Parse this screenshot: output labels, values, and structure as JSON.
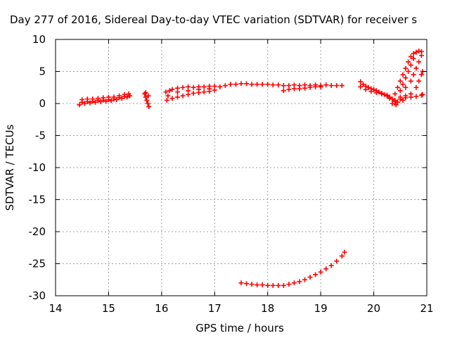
{
  "chart_data": {
    "type": "scatter",
    "title": "Day 277 of 2016, Sidereal Day-to-day VTEC variation (SDTVAR) for receiver s",
    "xlabel": "GPS time / hours",
    "ylabel": "SDTVAR / TECUs",
    "xlim": [
      14,
      21
    ],
    "ylim": [
      -30,
      10
    ],
    "x_ticks": [
      14,
      15,
      16,
      17,
      18,
      19,
      20,
      21
    ],
    "y_ticks": [
      10,
      5,
      0,
      -5,
      -10,
      -15,
      -20,
      -25,
      -30
    ],
    "x_tick_labels": [
      "14",
      "15",
      "16",
      "17",
      "18",
      "19",
      "20",
      "21"
    ],
    "y_tick_labels": [
      "10",
      "5",
      "0",
      "-5",
      "-10",
      "-15",
      "-20",
      "-25",
      "-30"
    ],
    "grid": true,
    "marker": "plus",
    "color": "#ff0000",
    "series": [
      {
        "points": [
          [
            14.45,
            -0.2
          ],
          [
            14.55,
            0.0
          ],
          [
            14.65,
            0.1
          ],
          [
            14.75,
            0.2
          ],
          [
            14.85,
            0.3
          ],
          [
            14.95,
            0.35
          ],
          [
            15.05,
            0.45
          ],
          [
            15.15,
            0.6
          ],
          [
            15.25,
            0.8
          ],
          [
            15.35,
            1.0
          ],
          [
            15.4,
            1.2
          ],
          [
            14.5,
            0.6
          ],
          [
            14.6,
            0.7
          ],
          [
            14.7,
            0.7
          ],
          [
            14.8,
            0.8
          ],
          [
            14.9,
            0.9
          ],
          [
            15.0,
            1.0
          ],
          [
            15.1,
            1.0
          ],
          [
            15.2,
            1.2
          ],
          [
            15.3,
            1.4
          ],
          [
            15.38,
            1.5
          ],
          [
            14.5,
            0.2
          ],
          [
            14.6,
            0.3
          ],
          [
            14.7,
            0.35
          ],
          [
            14.8,
            0.5
          ],
          [
            14.9,
            0.55
          ],
          [
            15.0,
            0.6
          ],
          [
            15.1,
            0.7
          ],
          [
            15.2,
            0.9
          ],
          [
            15.3,
            1.1
          ],
          [
            15.68,
            1.5
          ],
          [
            15.7,
            1.0
          ],
          [
            15.72,
            0.5
          ],
          [
            15.74,
            0.0
          ],
          [
            15.76,
            -0.5
          ],
          [
            15.7,
            1.7
          ],
          [
            15.75,
            1.2
          ],
          [
            16.08,
            1.8
          ],
          [
            16.1,
            0.5
          ],
          [
            16.12,
            1.2
          ],
          [
            16.15,
            2.0
          ],
          [
            16.2,
            2.2
          ],
          [
            16.3,
            2.4
          ],
          [
            16.4,
            2.5
          ],
          [
            16.5,
            2.6
          ],
          [
            16.6,
            2.5
          ],
          [
            16.7,
            2.6
          ],
          [
            16.8,
            2.6
          ],
          [
            16.9,
            2.7
          ],
          [
            17.0,
            2.7
          ],
          [
            16.2,
            0.8
          ],
          [
            16.3,
            1.0
          ],
          [
            16.4,
            1.2
          ],
          [
            16.5,
            1.4
          ],
          [
            16.6,
            1.6
          ],
          [
            16.7,
            1.7
          ],
          [
            16.8,
            1.8
          ],
          [
            16.9,
            1.9
          ],
          [
            17.0,
            2.1
          ],
          [
            16.3,
            1.8
          ],
          [
            16.5,
            2.0
          ],
          [
            16.7,
            2.2
          ],
          [
            16.9,
            2.3
          ],
          [
            17.1,
            2.6
          ],
          [
            17.2,
            2.8
          ],
          [
            17.3,
            3.0
          ],
          [
            17.4,
            3.0
          ],
          [
            17.5,
            3.1
          ],
          [
            17.6,
            3.1
          ],
          [
            17.7,
            3.0
          ],
          [
            17.8,
            3.0
          ],
          [
            17.9,
            3.0
          ],
          [
            18.0,
            3.0
          ],
          [
            18.1,
            2.9
          ],
          [
            18.2,
            2.9
          ],
          [
            18.3,
            2.8
          ],
          [
            18.3,
            2.0
          ],
          [
            18.4,
            2.2
          ],
          [
            18.5,
            2.3
          ],
          [
            18.6,
            2.3
          ],
          [
            18.7,
            2.4
          ],
          [
            18.8,
            2.5
          ],
          [
            18.9,
            2.6
          ],
          [
            19.0,
            2.6
          ],
          [
            18.4,
            2.8
          ],
          [
            18.5,
            2.9
          ],
          [
            18.6,
            2.8
          ],
          [
            18.7,
            2.9
          ],
          [
            18.8,
            2.8
          ],
          [
            18.9,
            2.9
          ],
          [
            19.0,
            2.8
          ],
          [
            19.1,
            2.9
          ],
          [
            19.2,
            2.8
          ],
          [
            19.3,
            2.8
          ],
          [
            19.4,
            2.8
          ],
          [
            19.75,
            3.4
          ],
          [
            19.8,
            3.0
          ],
          [
            19.85,
            2.7
          ],
          [
            19.9,
            2.5
          ],
          [
            19.95,
            2.3
          ],
          [
            20.0,
            2.2
          ],
          [
            20.05,
            2.0
          ],
          [
            20.1,
            1.8
          ],
          [
            20.15,
            1.6
          ],
          [
            20.2,
            1.4
          ],
          [
            20.25,
            1.2
          ],
          [
            20.3,
            1.0
          ],
          [
            20.35,
            0.7
          ],
          [
            20.4,
            0.3
          ],
          [
            20.42,
            -0.2
          ],
          [
            19.75,
            2.6
          ],
          [
            19.85,
            2.2
          ],
          [
            19.95,
            1.9
          ],
          [
            20.05,
            1.7
          ],
          [
            20.15,
            1.5
          ],
          [
            20.25,
            1.3
          ],
          [
            20.4,
            1.5
          ],
          [
            20.45,
            2.5
          ],
          [
            20.5,
            3.5
          ],
          [
            20.55,
            4.5
          ],
          [
            20.6,
            5.5
          ],
          [
            20.65,
            6.5
          ],
          [
            20.7,
            7.3
          ],
          [
            20.75,
            7.8
          ],
          [
            20.5,
            2.0
          ],
          [
            20.55,
            3.0
          ],
          [
            20.6,
            4.0
          ],
          [
            20.65,
            5.0
          ],
          [
            20.7,
            6.0
          ],
          [
            20.75,
            7.0
          ],
          [
            20.8,
            8.0
          ],
          [
            20.85,
            8.2
          ],
          [
            20.9,
            8.1
          ],
          [
            20.6,
            2.5
          ],
          [
            20.7,
            3.5
          ],
          [
            20.75,
            4.5
          ],
          [
            20.8,
            5.5
          ],
          [
            20.85,
            6.5
          ],
          [
            20.9,
            7.5
          ],
          [
            20.5,
            1.0
          ],
          [
            20.6,
            1.2
          ],
          [
            20.7,
            1.5
          ],
          [
            20.8,
            2.5
          ],
          [
            20.85,
            3.5
          ],
          [
            20.9,
            4.5
          ],
          [
            20.92,
            5.0
          ],
          [
            20.4,
            0.5
          ],
          [
            20.5,
            0.7
          ],
          [
            20.6,
            0.9
          ],
          [
            20.7,
            1.0
          ],
          [
            20.8,
            1.1
          ],
          [
            20.9,
            1.3
          ],
          [
            20.92,
            1.4
          ],
          [
            20.3,
            0.8
          ],
          [
            20.35,
            0.0
          ],
          [
            20.45,
            0.2
          ],
          [
            20.55,
            0.5
          ],
          [
            17.5,
            -28.0
          ],
          [
            17.6,
            -28.1
          ],
          [
            17.7,
            -28.2
          ],
          [
            17.8,
            -28.3
          ],
          [
            17.9,
            -28.3
          ],
          [
            18.0,
            -28.4
          ],
          [
            18.1,
            -28.4
          ],
          [
            18.2,
            -28.4
          ],
          [
            18.3,
            -28.4
          ],
          [
            18.4,
            -28.2
          ],
          [
            18.5,
            -28.0
          ],
          [
            18.6,
            -27.8
          ],
          [
            18.7,
            -27.5
          ],
          [
            18.8,
            -27.1
          ],
          [
            18.9,
            -26.7
          ],
          [
            19.0,
            -26.3
          ],
          [
            19.1,
            -25.8
          ],
          [
            19.2,
            -25.3
          ],
          [
            19.3,
            -24.6
          ],
          [
            19.4,
            -23.8
          ],
          [
            19.45,
            -23.2
          ]
        ]
      }
    ]
  }
}
